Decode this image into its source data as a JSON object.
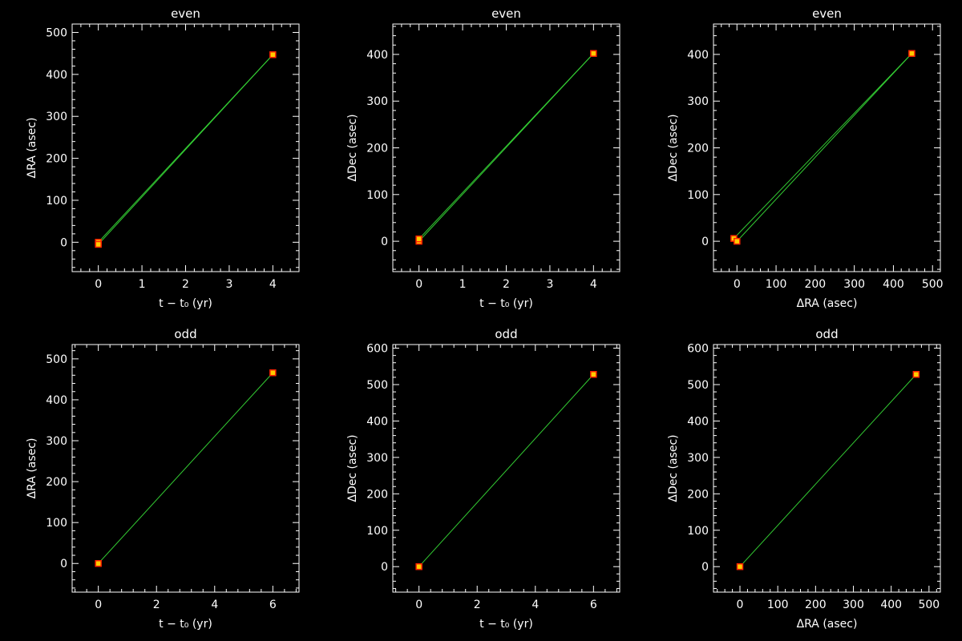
{
  "figure": {
    "background": "#000000",
    "axis_color": "#ffffff",
    "model_line_color": "#33cc33",
    "point_outline_color": "#ff2200",
    "point_fill_color": "#ffcc00"
  },
  "chart_data": [
    {
      "type": "scatter",
      "title": "even",
      "xlabel": "t − t₀ (yr)",
      "ylabel": "ΔRA (asec)",
      "xlim": [
        -0.6,
        4.6
      ],
      "ylim": [
        -70,
        520
      ],
      "x_ticks": [
        0,
        1,
        2,
        3,
        4
      ],
      "y_ticks": [
        0,
        100,
        200,
        300,
        400,
        500
      ],
      "points": [
        {
          "x": 0,
          "y": 0
        },
        {
          "x": 0,
          "y": -5
        },
        {
          "x": 4,
          "y": 447
        }
      ],
      "lines": [
        [
          {
            "x": 0,
            "y": -5
          },
          {
            "x": 4,
            "y": 447
          }
        ],
        [
          {
            "x": 0,
            "y": 0
          },
          {
            "x": 4,
            "y": 447
          }
        ]
      ]
    },
    {
      "type": "scatter",
      "title": "even",
      "xlabel": "t − t₀ (yr)",
      "ylabel": "ΔDec (asec)",
      "xlim": [
        -0.6,
        4.6
      ],
      "ylim": [
        -65,
        465
      ],
      "x_ticks": [
        0,
        1,
        2,
        3,
        4
      ],
      "y_ticks": [
        0,
        100,
        200,
        300,
        400
      ],
      "points": [
        {
          "x": 0,
          "y": 0
        },
        {
          "x": 0,
          "y": 5
        },
        {
          "x": 4,
          "y": 402
        }
      ],
      "lines": [
        [
          {
            "x": 0,
            "y": 0
          },
          {
            "x": 4,
            "y": 402
          }
        ],
        [
          {
            "x": 0,
            "y": 5
          },
          {
            "x": 4,
            "y": 402
          }
        ]
      ]
    },
    {
      "type": "scatter",
      "title": "even",
      "xlabel": "ΔRA (asec)",
      "ylabel": "ΔDec (asec)",
      "xlim": [
        -60,
        520
      ],
      "ylim": [
        -65,
        465
      ],
      "x_ticks": [
        0,
        100,
        200,
        300,
        400,
        500
      ],
      "y_ticks": [
        0,
        100,
        200,
        300,
        400
      ],
      "points": [
        {
          "x": -8,
          "y": 6
        },
        {
          "x": 0,
          "y": 0
        },
        {
          "x": 447,
          "y": 402
        }
      ],
      "lines": [
        [
          {
            "x": -8,
            "y": 6
          },
          {
            "x": 447,
            "y": 402
          }
        ],
        [
          {
            "x": 0,
            "y": 0
          },
          {
            "x": 447,
            "y": 402
          }
        ]
      ]
    },
    {
      "type": "scatter",
      "title": "odd",
      "xlabel": "t − t₀ (yr)",
      "ylabel": "ΔRA (asec)",
      "xlim": [
        -0.9,
        6.9
      ],
      "ylim": [
        -70,
        535
      ],
      "x_ticks": [
        0,
        2,
        4,
        6
      ],
      "y_ticks": [
        0,
        100,
        200,
        300,
        400,
        500
      ],
      "points": [
        {
          "x": 0,
          "y": 0
        },
        {
          "x": 6,
          "y": 466
        }
      ],
      "lines": [
        [
          {
            "x": 0,
            "y": 0
          },
          {
            "x": 6,
            "y": 466
          }
        ]
      ]
    },
    {
      "type": "scatter",
      "title": "odd",
      "xlabel": "t − t₀ (yr)",
      "ylabel": "ΔDec (asec)",
      "xlim": [
        -0.9,
        6.9
      ],
      "ylim": [
        -70,
        610
      ],
      "x_ticks": [
        0,
        2,
        4,
        6
      ],
      "y_ticks": [
        0,
        100,
        200,
        300,
        400,
        500,
        600
      ],
      "points": [
        {
          "x": 0,
          "y": 0
        },
        {
          "x": 6,
          "y": 528
        }
      ],
      "lines": [
        [
          {
            "x": 0,
            "y": 0
          },
          {
            "x": 6,
            "y": 528
          }
        ]
      ]
    },
    {
      "type": "scatter",
      "title": "odd",
      "xlabel": "ΔRA (asec)",
      "ylabel": "ΔDec (asec)",
      "xlim": [
        -70,
        530
      ],
      "ylim": [
        -70,
        610
      ],
      "x_ticks": [
        0,
        100,
        200,
        300,
        400,
        500
      ],
      "y_ticks": [
        0,
        100,
        200,
        300,
        400,
        500,
        600
      ],
      "points": [
        {
          "x": 0,
          "y": 0
        },
        {
          "x": 466,
          "y": 528
        }
      ],
      "lines": [
        [
          {
            "x": 0,
            "y": 0
          },
          {
            "x": 466,
            "y": 528
          }
        ]
      ]
    }
  ]
}
